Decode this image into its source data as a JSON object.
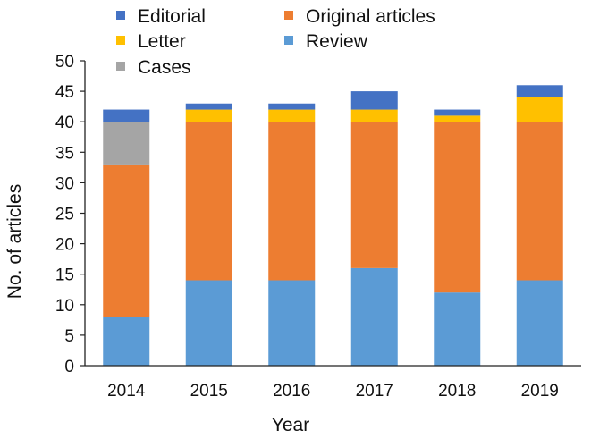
{
  "chart_data": {
    "type": "bar",
    "stacked": true,
    "title": "",
    "xlabel": "Year",
    "ylabel": "No. of articles",
    "ylim": [
      0,
      50
    ],
    "yticks": [
      0,
      5,
      10,
      15,
      20,
      25,
      30,
      35,
      40,
      45,
      50
    ],
    "grid": false,
    "legend_position": "top",
    "categories": [
      "2014",
      "2015",
      "2016",
      "2017",
      "2018",
      "2019"
    ],
    "series": [
      {
        "name": "Review",
        "color": "#5b9bd5",
        "values": [
          8,
          14,
          14,
          16,
          12,
          14
        ]
      },
      {
        "name": "Original articles",
        "color": "#ed7d31",
        "values": [
          25,
          26,
          26,
          24,
          28,
          26
        ]
      },
      {
        "name": "Cases",
        "color": "#a5a5a5",
        "values": [
          7,
          0,
          0,
          0,
          0,
          0
        ]
      },
      {
        "name": "Letter",
        "color": "#ffc000",
        "values": [
          0,
          2,
          2,
          2,
          1,
          4
        ]
      },
      {
        "name": "Editorial",
        "color": "#4472c4",
        "values": [
          2,
          1,
          1,
          3,
          1,
          2
        ]
      }
    ],
    "legend": [
      {
        "name": "Editorial",
        "color": "#4472c4"
      },
      {
        "name": "Original articles",
        "color": "#ed7d31"
      },
      {
        "name": "Letter",
        "color": "#ffc000"
      },
      {
        "name": "Review",
        "color": "#5b9bd5"
      },
      {
        "name": "Cases",
        "color": "#a5a5a5"
      }
    ]
  }
}
